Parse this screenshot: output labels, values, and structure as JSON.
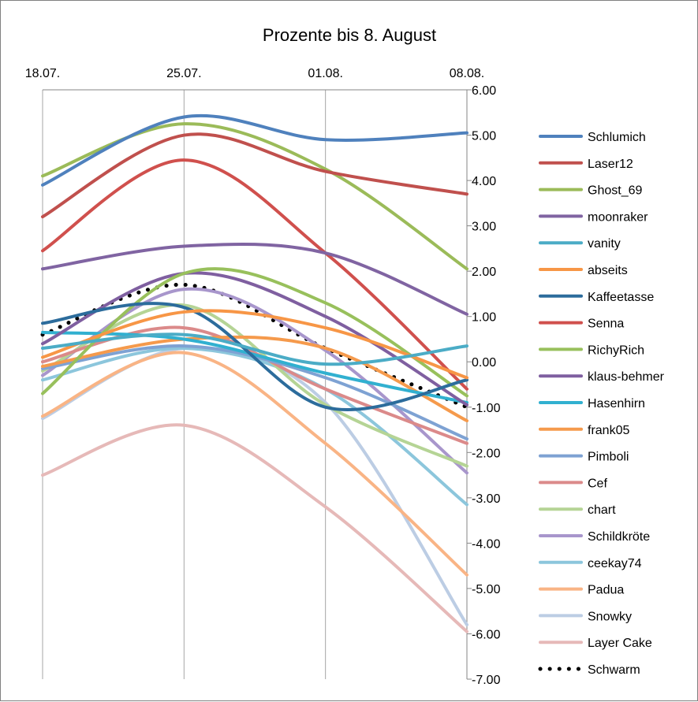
{
  "chart_data": {
    "type": "line",
    "title": "Prozente bis 8. August",
    "categories": [
      "18.07.",
      "25.07.",
      "01.08.",
      "08.08."
    ],
    "ylim": [
      -7,
      6
    ],
    "yticks": [
      "6.00",
      "5.00",
      "4.00",
      "3.00",
      "2.00",
      "1.00",
      "0.00",
      "-1.00",
      "-2.00",
      "-3.00",
      "-4.00",
      "-5.00",
      "-6.00",
      "-7.00"
    ],
    "grid": "vertical",
    "legend_position": "right",
    "series": [
      {
        "name": "Schlumich",
        "color": "#4f81bd",
        "values": [
          3.9,
          5.4,
          4.9,
          5.05
        ]
      },
      {
        "name": "Laser12",
        "color": "#c0504d",
        "values": [
          3.2,
          5.0,
          4.2,
          3.7
        ]
      },
      {
        "name": "Ghost_69",
        "color": "#9bbb59",
        "values": [
          4.1,
          5.25,
          4.25,
          2.05
        ]
      },
      {
        "name": "moonraker",
        "color": "#8064a2",
        "values": [
          2.05,
          2.55,
          2.4,
          1.05
        ]
      },
      {
        "name": "vanity",
        "color": "#4bacc6",
        "values": [
          0.3,
          0.6,
          -0.05,
          0.35
        ]
      },
      {
        "name": "abseits",
        "color": "#f79646",
        "values": [
          0.1,
          1.1,
          0.75,
          -0.35
        ]
      },
      {
        "name": "Kaffeetasse",
        "color": "#2c6c9c",
        "values": [
          0.85,
          1.2,
          -1.0,
          -0.4
        ]
      },
      {
        "name": "Senna",
        "color": "#d0504d",
        "values": [
          2.45,
          4.45,
          2.4,
          -0.6
        ]
      },
      {
        "name": "RichyRich",
        "color": "#98c05c",
        "values": [
          -0.7,
          1.95,
          1.3,
          -0.75
        ]
      },
      {
        "name": "klaus-behmer",
        "color": "#7f5fa0",
        "values": [
          0.4,
          1.95,
          1.0,
          -0.95
        ]
      },
      {
        "name": "Hasenhirn",
        "color": "#31b0d0",
        "values": [
          0.65,
          0.5,
          -0.25,
          -0.9
        ]
      },
      {
        "name": "frank05",
        "color": "#f59a4c",
        "values": [
          -0.1,
          0.5,
          0.3,
          -1.3
        ]
      },
      {
        "name": "Pimboli",
        "color": "#7ea2d3",
        "values": [
          -0.15,
          0.35,
          -0.35,
          -1.7
        ]
      },
      {
        "name": "Cef",
        "color": "#db8a8a",
        "values": [
          0.0,
          0.75,
          -0.6,
          -1.8
        ]
      },
      {
        "name": "chart",
        "color": "#b5d495",
        "values": [
          -0.2,
          1.25,
          -0.95,
          -2.3
        ]
      },
      {
        "name": "Schildkröte",
        "color": "#a896cc",
        "values": [
          -0.3,
          1.6,
          0.25,
          -2.45
        ]
      },
      {
        "name": "ceekay74",
        "color": "#8cc6dc",
        "values": [
          -0.4,
          0.3,
          -0.6,
          -3.15
        ]
      },
      {
        "name": "Padua",
        "color": "#f9b485",
        "values": [
          -1.2,
          0.2,
          -1.8,
          -4.7
        ]
      },
      {
        "name": "Snowky",
        "color": "#bccde4",
        "values": [
          -1.25,
          0.3,
          -0.9,
          -5.8
        ]
      },
      {
        "name": "Layer Cake",
        "color": "#e6b9b8",
        "values": [
          -2.5,
          -1.4,
          -3.2,
          -5.95
        ]
      },
      {
        "name": "Schwarm",
        "color": "#000000",
        "style": "dotted",
        "values": [
          0.6,
          1.7,
          0.3,
          -1.0
        ]
      }
    ]
  }
}
